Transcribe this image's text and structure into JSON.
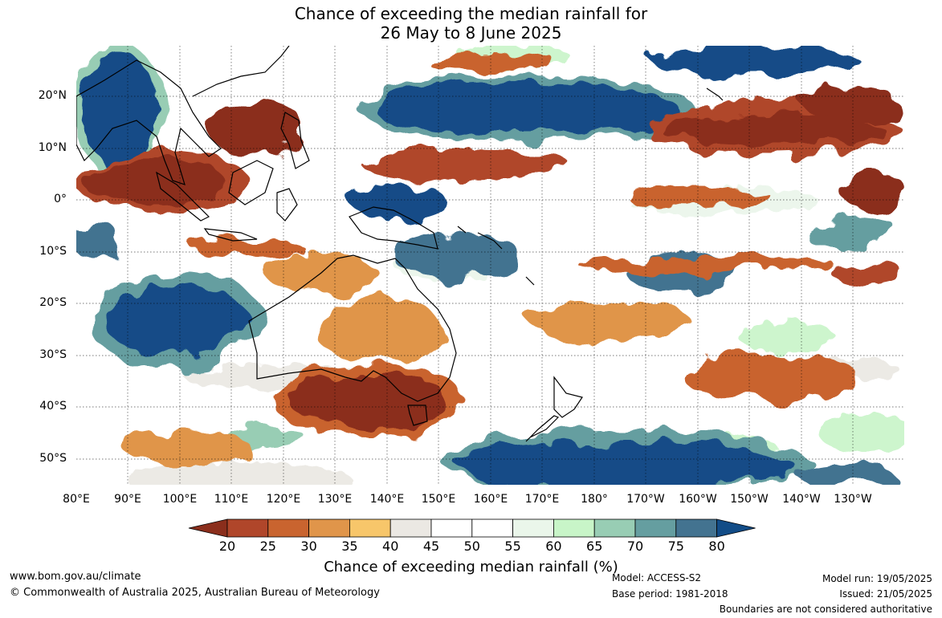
{
  "title_line1": "Chance of exceeding the median rainfall for",
  "title_line2": "26 May to 8 June 2025",
  "map": {
    "lon_labels": [
      "80°E",
      "90°E",
      "100°E",
      "110°E",
      "120°E",
      "130°E",
      "140°E",
      "150°E",
      "160°E",
      "170°E",
      "180°",
      "170°W",
      "160°W",
      "150°W",
      "140°W",
      "130°W"
    ],
    "lat_labels": [
      "20°N",
      "10°N",
      "0°",
      "10°S",
      "20°S",
      "30°S",
      "40°S",
      "50°S"
    ],
    "lon_range": [
      80,
      235
    ],
    "lat_range": [
      -55,
      30
    ],
    "grid_lines": "dotted",
    "regions_shown": [
      "Australia",
      "Indonesia",
      "New Guinea",
      "New Zealand",
      "Southeast Asia",
      "Philippines",
      "Pacific Islands"
    ]
  },
  "legend": {
    "ticks": [
      "20",
      "25",
      "30",
      "35",
      "40",
      "45",
      "50",
      "55",
      "60",
      "65",
      "70",
      "75",
      "80"
    ],
    "label": "Chance of exceeding median rainfall (%)",
    "colors": [
      "#8b2e1c",
      "#b0462a",
      "#c9642f",
      "#e0954a",
      "#f7c66a",
      "#ebe8e3",
      "#ffffff",
      "#ffffff",
      "#eaf6ea",
      "#c8f5c8",
      "#98cdb4",
      "#659ea0",
      "#437390",
      "#124c87"
    ]
  },
  "footer": {
    "website": "www.bom.gov.au/climate",
    "copyright": "© Commonwealth of Australia 2025, Australian Bureau of Meteorology",
    "model": "Model: ACCESS-S2",
    "base_period": "Base period: 1981-2018",
    "model_run": "Model run: 19/05/2025",
    "issued": "Issued: 21/05/2025",
    "disclaimer": "Boundaries are not considered authoritative"
  }
}
